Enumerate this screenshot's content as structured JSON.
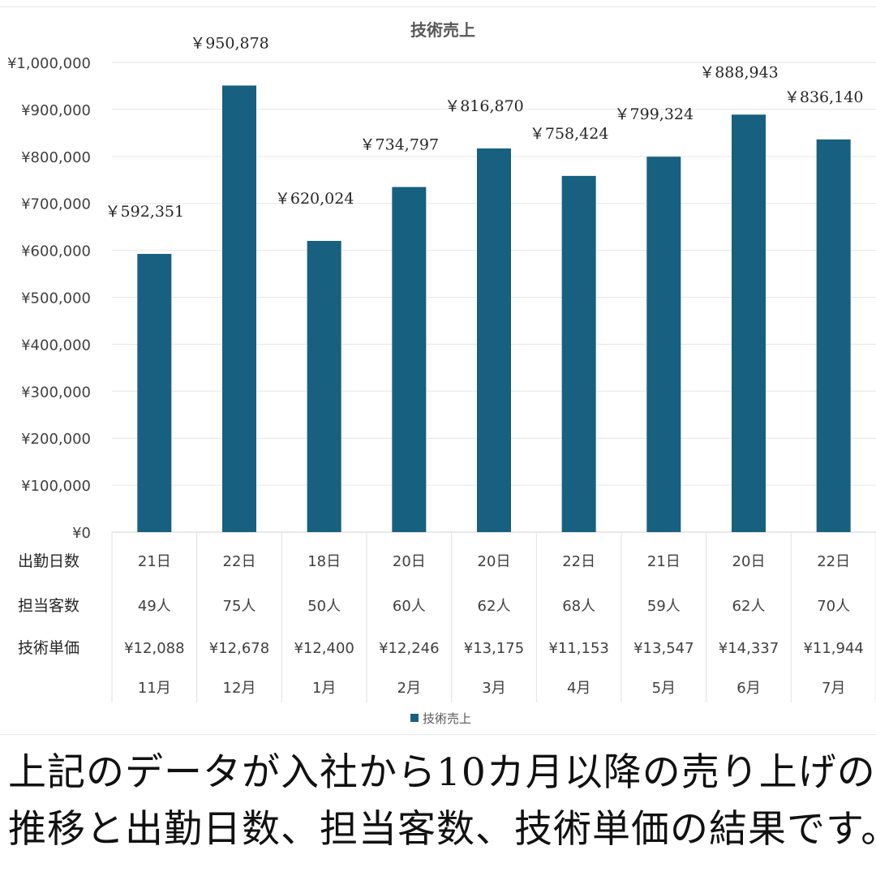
{
  "chart_data": {
    "type": "bar",
    "title": "技術売上",
    "categories": [
      "11月",
      "12月",
      "1月",
      "2月",
      "3月",
      "4月",
      "5月",
      "6月",
      "7月"
    ],
    "series": [
      {
        "name": "技術売上",
        "values": [
          592351,
          950878,
          620024,
          734797,
          816870,
          758424,
          799324,
          888943,
          836140
        ],
        "color": "#17607f"
      }
    ],
    "data_labels": [
      "￥592,351",
      "￥950,878",
      "￥620,024",
      "￥734,797",
      "￥816,870",
      "￥758,424",
      "￥799,324",
      "￥888,943",
      "￥836,140"
    ],
    "ylim": [
      0,
      1000000
    ],
    "yticks": [
      "¥0",
      "¥100,000",
      "¥200,000",
      "¥300,000",
      "¥400,000",
      "¥500,000",
      "¥600,000",
      "¥700,000",
      "¥800,000",
      "¥900,000",
      "¥1,000,000"
    ],
    "grid": true,
    "legend_position": "bottom",
    "table_rows": [
      {
        "label": "出勤日数",
        "values": [
          "21日",
          "22日",
          "18日",
          "20日",
          "20日",
          "22日",
          "21日",
          "20日",
          "22日"
        ]
      },
      {
        "label": "担当客数",
        "values": [
          "49人",
          "75人",
          "50人",
          "60人",
          "62人",
          "68人",
          "59人",
          "62人",
          "70人"
        ]
      },
      {
        "label": "技術単価",
        "values": [
          "¥12,088",
          "¥12,678",
          "¥12,400",
          "¥12,246",
          "¥13,175",
          "¥11,153",
          "¥13,547",
          "¥14,337",
          "¥11,944"
        ]
      }
    ]
  },
  "caption": {
    "line1": "上記のデータが入社から10カ月以降の売り上げの",
    "line2": "推移と出勤日数、担当客数、技術単価の結果です。"
  }
}
